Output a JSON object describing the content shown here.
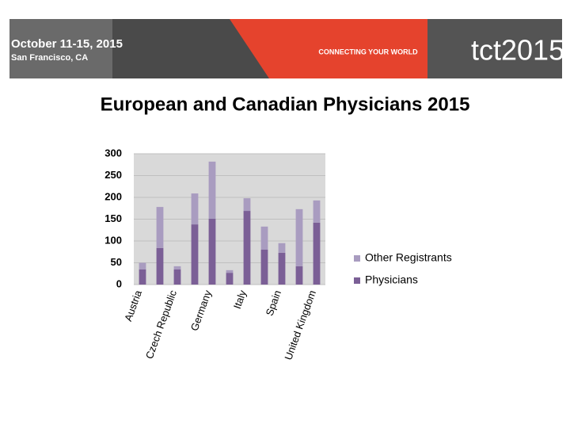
{
  "header": {
    "dates": "October 11-15, 2015",
    "location": "San Francisco, CA",
    "tagline": "CONNECTING YOUR WORLD",
    "logo": "tct2015"
  },
  "chart_data": {
    "type": "stacked-bar",
    "title": "European and Canadian Physicians 2015",
    "categories": [
      "Austria",
      null,
      "Czech Republic",
      null,
      "Germany",
      null,
      "Italy",
      null,
      "Spain",
      null,
      "United Kingdom"
    ],
    "series": [
      {
        "name": "Physicians",
        "color": "#7b5f96",
        "values": [
          35,
          84,
          35,
          138,
          151,
          27,
          169,
          80,
          73,
          42,
          142
        ]
      },
      {
        "name": "Other Registrants",
        "color": "#a99cc0",
        "values": [
          15,
          94,
          7,
          71,
          131,
          6,
          29,
          53,
          22,
          131,
          51
        ]
      }
    ],
    "ylim": [
      0,
      300
    ],
    "yticks": [
      0,
      50,
      100,
      150,
      200,
      250,
      300
    ],
    "legend": "right"
  }
}
